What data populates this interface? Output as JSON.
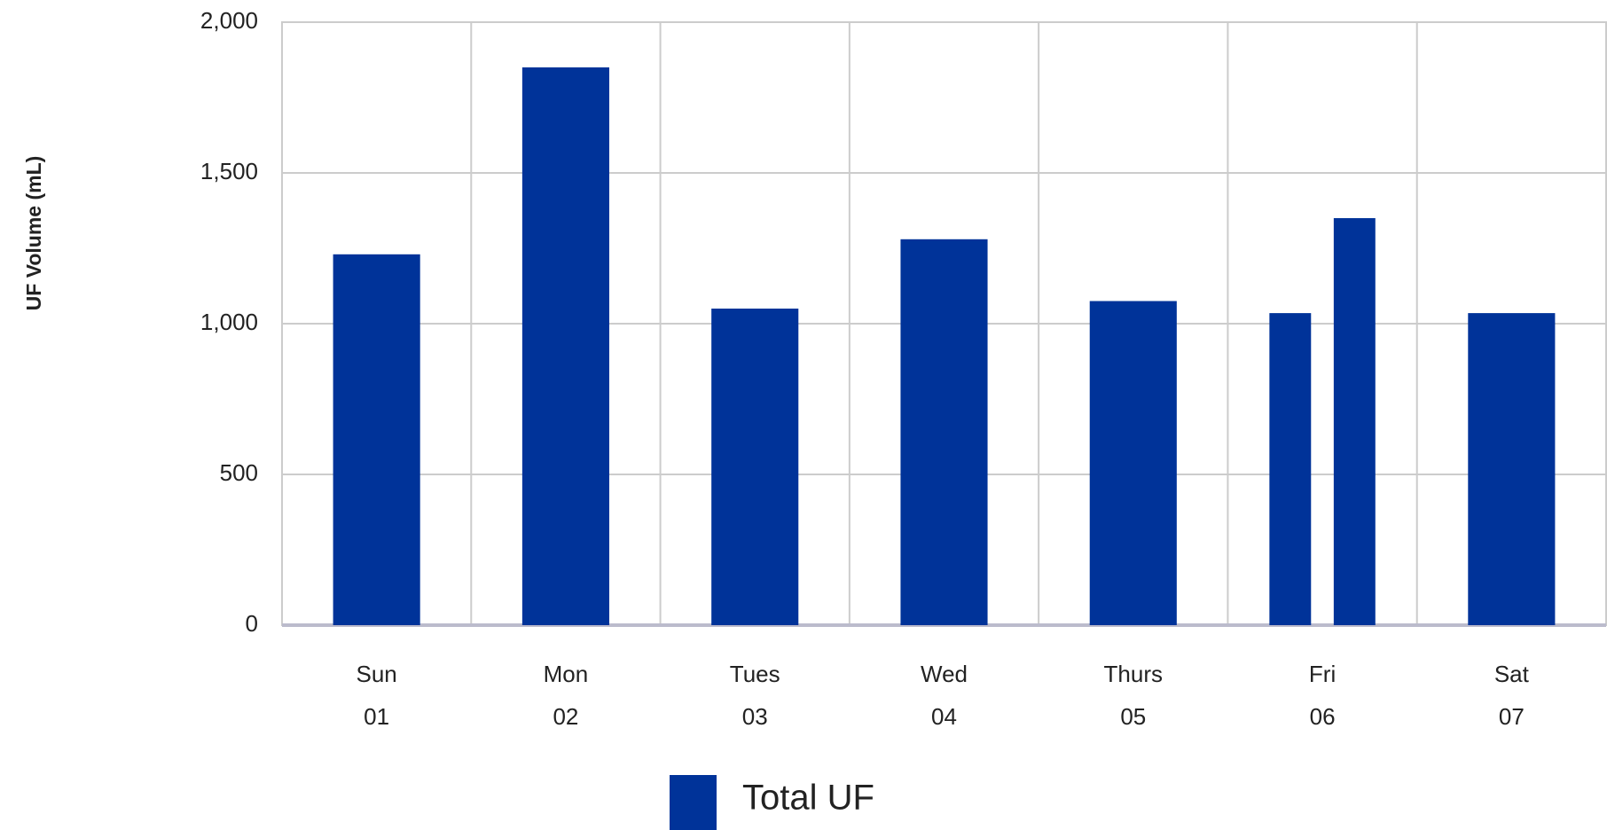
{
  "chart_data": {
    "type": "bar",
    "y_label": "UF Volume (mL)",
    "categories": [
      [
        "Sun",
        "01"
      ],
      [
        "Mon",
        "02"
      ],
      [
        "Tues",
        "03"
      ],
      [
        "Wed",
        "04"
      ],
      [
        "Thurs",
        "05"
      ],
      [
        "Fri",
        "06"
      ],
      [
        "Sat",
        "07"
      ]
    ],
    "series": [
      {
        "name": "Total UF",
        "color": "#003399",
        "values": [
          [
            1230
          ],
          [
            1850
          ],
          [
            1050
          ],
          [
            1280
          ],
          [
            1075
          ],
          [
            1035,
            1350
          ],
          [
            1035
          ]
        ]
      }
    ],
    "ylim": [
      0,
      2000
    ],
    "yticks": [
      0,
      500,
      {
        "value": 1000,
        "label": "1,000"
      },
      {
        "value": 1500,
        "label": "1,500"
      },
      {
        "value": 2000,
        "label": "2,000"
      }
    ],
    "grid": true,
    "legend": "bottom"
  }
}
